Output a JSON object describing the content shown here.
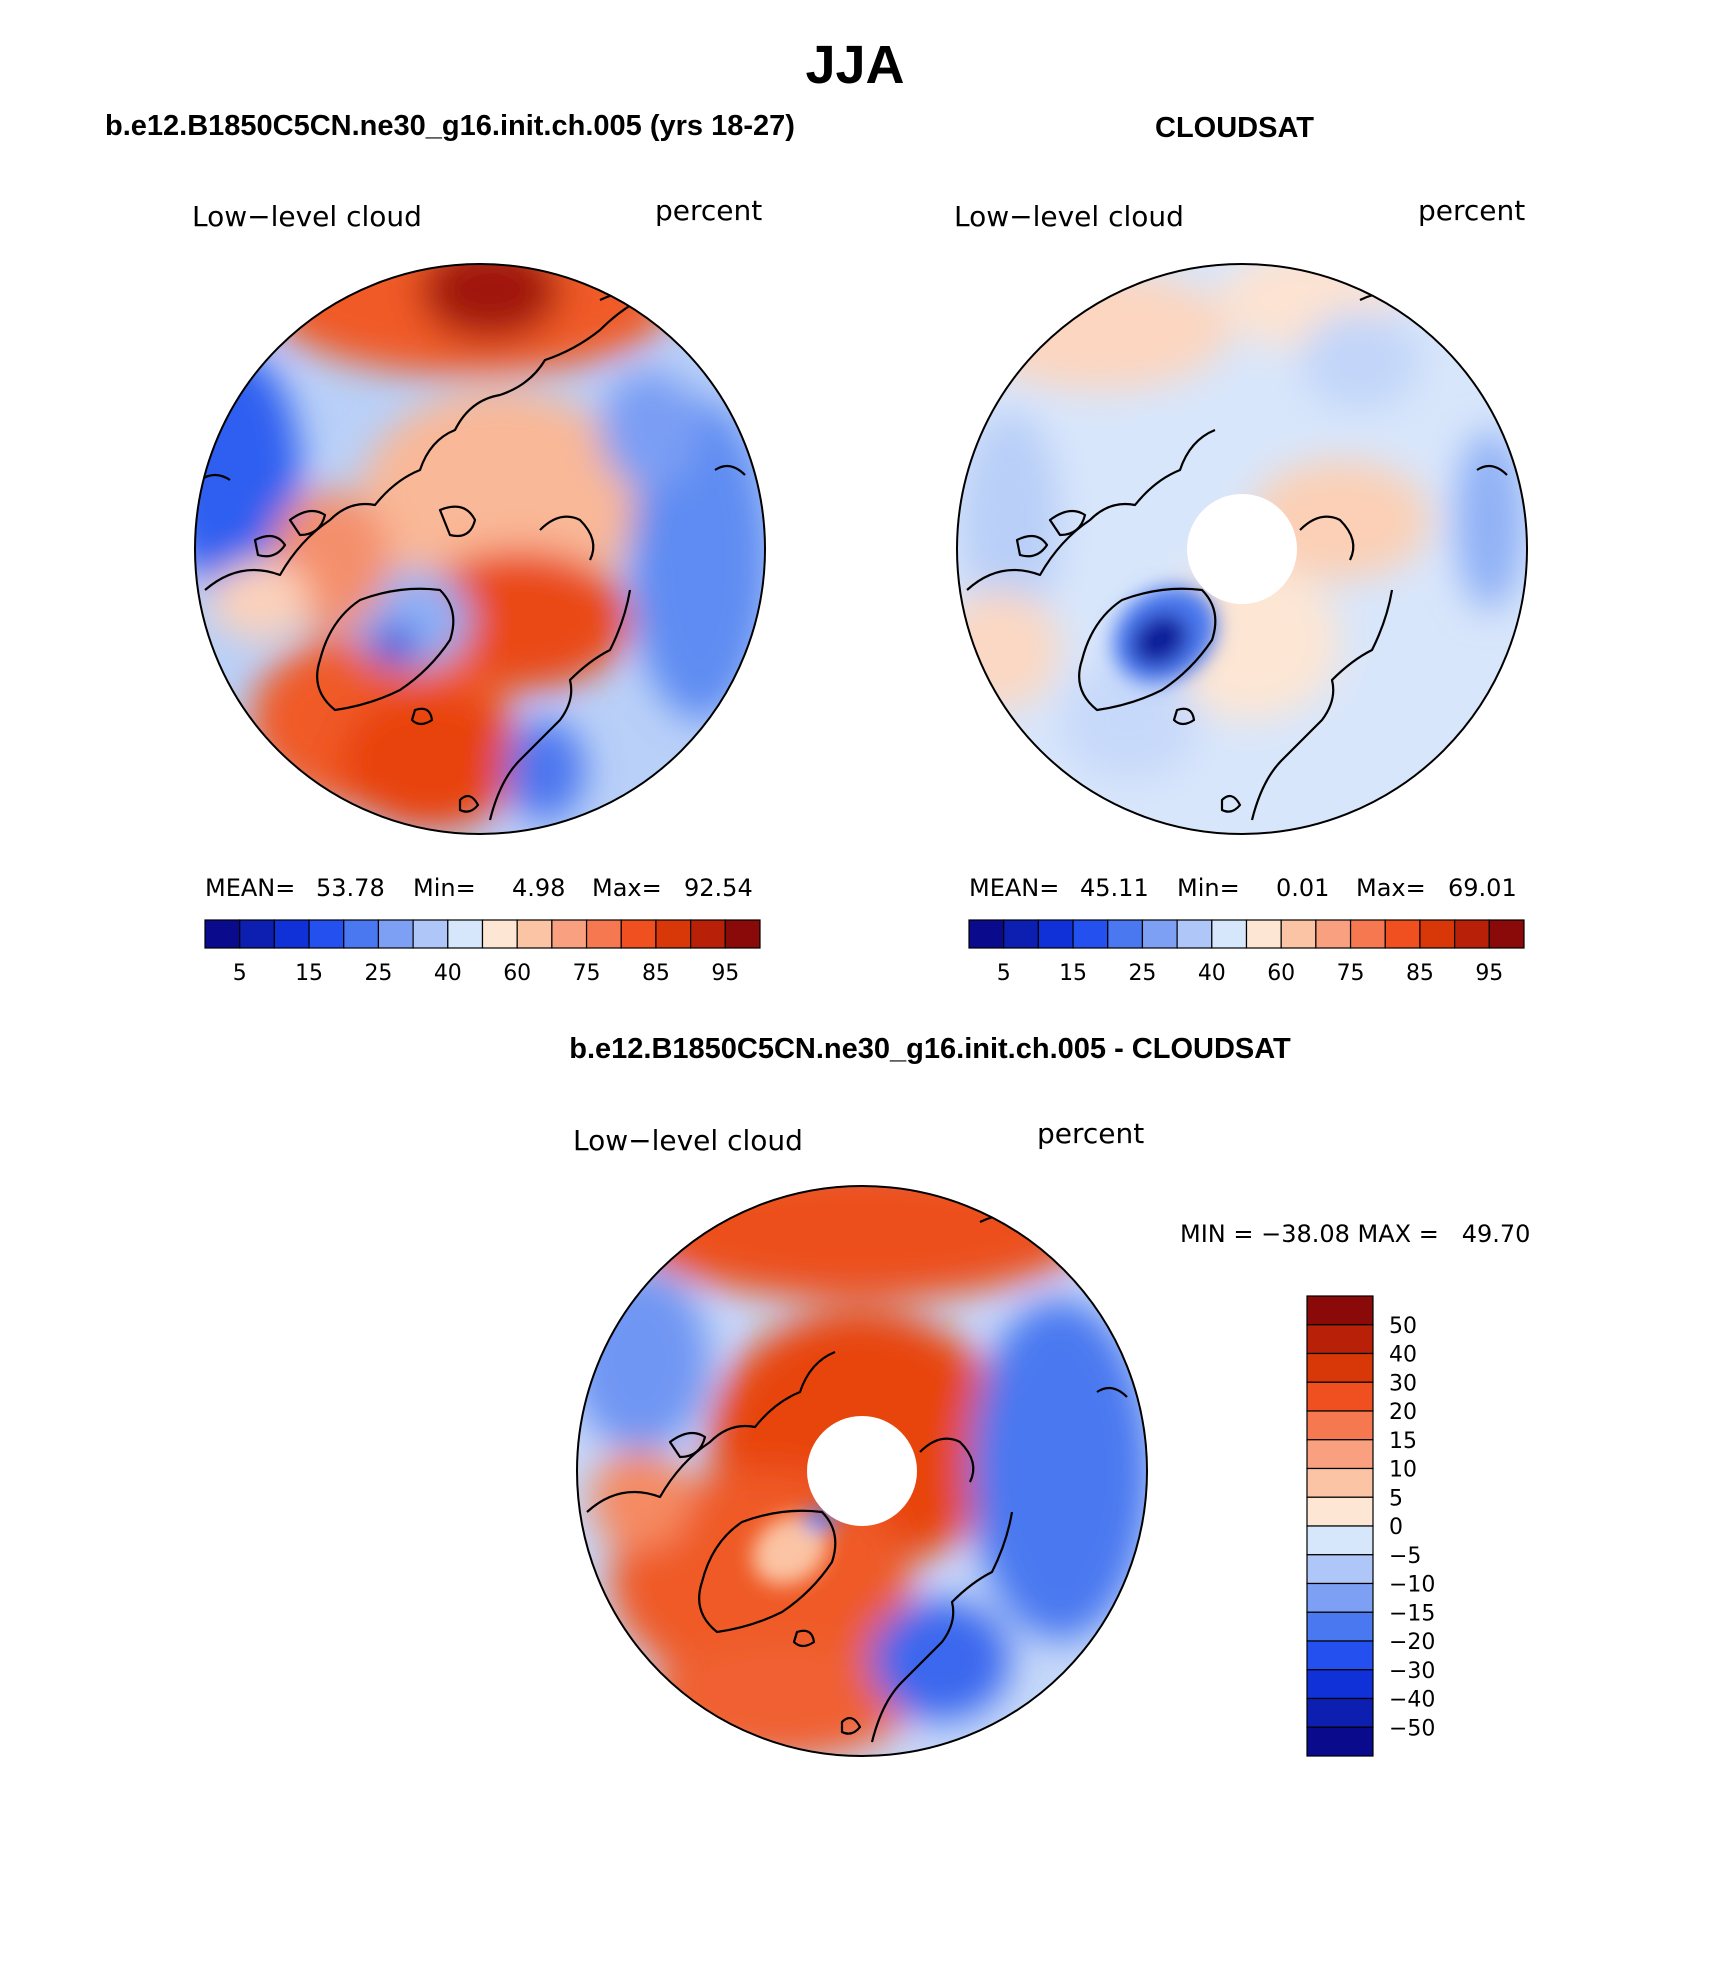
{
  "page": {
    "title": "JJA",
    "panel1_header": "b.e12.B1850C5CN.ne30_g16.init.ch.005 (yrs 18-27)",
    "panel2_header": "CLOUDSAT",
    "panel3_header": "b.e12.B1850C5CN.ne30_g16.init.ch.005 - CLOUDSAT"
  },
  "panels": [
    {
      "variable": "Low−level cloud",
      "units": "percent",
      "mean_label": "MEAN=",
      "mean": "53.78",
      "min_label": "Min=",
      "min": "4.98",
      "max_label": "Max=",
      "max": "92.54"
    },
    {
      "variable": "Low−level cloud",
      "units": "percent",
      "mean_label": "MEAN=",
      "mean": "45.11",
      "min_label": "Min=",
      "min": "0.01",
      "max_label": "Max=",
      "max": "69.01"
    },
    {
      "variable": "Low−level cloud",
      "units": "percent",
      "minmax_text": "MIN = −38.08 MAX =   49.70"
    }
  ],
  "colorbar_abs": {
    "colors": [
      "#0a0a8c",
      "#0c1fb0",
      "#1030d8",
      "#2450f0",
      "#4a78f0",
      "#7ea0f4",
      "#aec6f8",
      "#d6e6fb",
      "#fde6d4",
      "#fbc4a4",
      "#f8a080",
      "#f57850",
      "#f05020",
      "#d83808",
      "#b82008",
      "#8a0a0a"
    ],
    "tick_labels": [
      "5",
      "15",
      "25",
      "40",
      "60",
      "75",
      "85",
      "95"
    ]
  },
  "colorbar_diff": {
    "colors": [
      "#0a0a8c",
      "#0c1fb0",
      "#1030d8",
      "#2450f0",
      "#4a78f0",
      "#7ea0f4",
      "#aec6f8",
      "#d6e6fb",
      "#fde6d4",
      "#fbc4a4",
      "#f8a080",
      "#f57850",
      "#f05020",
      "#d83808",
      "#b82008",
      "#8a0a0a"
    ],
    "tick_labels": [
      "50",
      "40",
      "30",
      "20",
      "15",
      "10",
      "5",
      "0",
      "−5",
      "−10",
      "−15",
      "−20",
      "−30",
      "−40",
      "−50"
    ]
  }
}
